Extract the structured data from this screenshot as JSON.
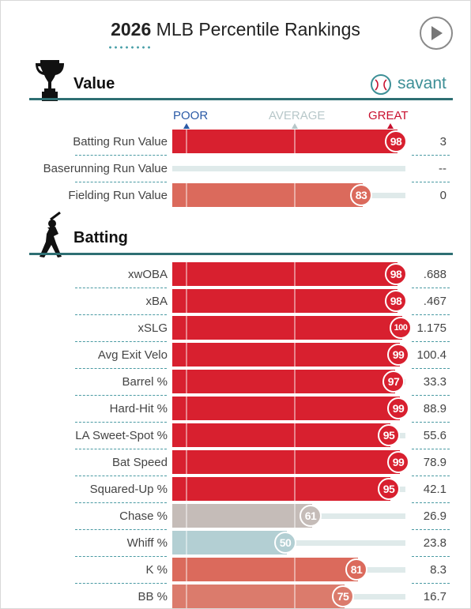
{
  "header": {
    "year": "2026",
    "title": "MLB Percentile Rankings"
  },
  "brand": {
    "name": "savant"
  },
  "scale": {
    "poor": "POOR",
    "average": "AVERAGE",
    "great": "GREAT",
    "poor_color": "#2b5aa6",
    "average_color": "#b7c7c9",
    "great_color": "#c8102e"
  },
  "sections": [
    {
      "id": "value",
      "title": "Value",
      "icon": "trophy-icon",
      "rows": [
        {
          "label": "Batting Run Value",
          "percentile": 98,
          "pct_text": "98",
          "value": "3",
          "color": "#d8202f"
        },
        {
          "label": "Baserunning Run Value",
          "percentile": null,
          "pct_text": "",
          "value": "--",
          "color": ""
        },
        {
          "label": "Fielding Run Value",
          "percentile": 83,
          "pct_text": "83",
          "value": "0",
          "color": "#db6a5c"
        }
      ]
    },
    {
      "id": "batting",
      "title": "Batting",
      "icon": "batter-icon",
      "rows": [
        {
          "label": "xwOBA",
          "percentile": 98,
          "pct_text": "98",
          "value": ".688",
          "color": "#d8202f"
        },
        {
          "label": "xBA",
          "percentile": 98,
          "pct_text": "98",
          "value": ".467",
          "color": "#d8202f"
        },
        {
          "label": "xSLG",
          "percentile": 100,
          "pct_text": "100",
          "value": "1.175",
          "color": "#d8202f"
        },
        {
          "label": "Avg Exit Velo",
          "percentile": 99,
          "pct_text": "99",
          "value": "100.4",
          "color": "#d8202f"
        },
        {
          "label": "Barrel %",
          "percentile": 97,
          "pct_text": "97",
          "value": "33.3",
          "color": "#d8202f"
        },
        {
          "label": "Hard-Hit %",
          "percentile": 99,
          "pct_text": "99",
          "value": "88.9",
          "color": "#d8202f"
        },
        {
          "label": "LA Sweet-Spot %",
          "percentile": 95,
          "pct_text": "95",
          "value": "55.6",
          "color": "#d8202f"
        },
        {
          "label": "Bat Speed",
          "percentile": 99,
          "pct_text": "99",
          "value": "78.9",
          "color": "#d8202f"
        },
        {
          "label": "Squared-Up %",
          "percentile": 95,
          "pct_text": "95",
          "value": "42.1",
          "color": "#d8202f"
        },
        {
          "label": "Chase %",
          "percentile": 61,
          "pct_text": "61",
          "value": "26.9",
          "color": "#c5bcb8"
        },
        {
          "label": "Whiff %",
          "percentile": 50,
          "pct_text": "50",
          "value": "23.8",
          "color": "#b3cfd3"
        },
        {
          "label": "K %",
          "percentile": 81,
          "pct_text": "81",
          "value": "8.3",
          "color": "#db6a5c"
        },
        {
          "label": "BB %",
          "percentile": 75,
          "pct_text": "75",
          "value": "16.7",
          "color": "#db7b6c"
        }
      ]
    }
  ]
}
